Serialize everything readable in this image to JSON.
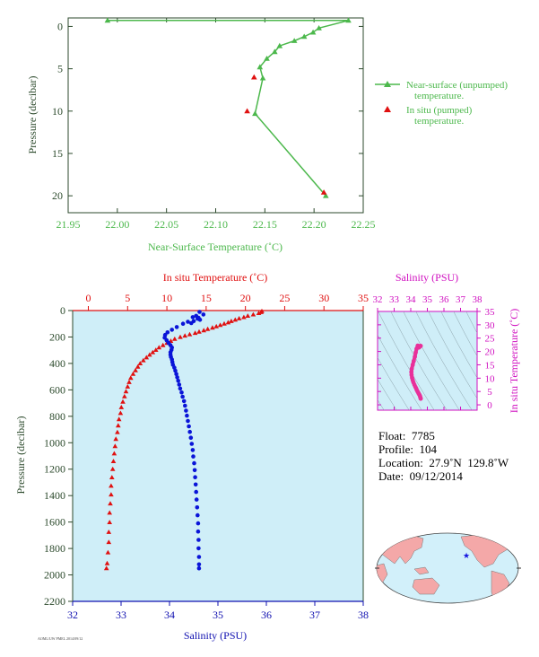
{
  "colors": {
    "near_surface": "#4cb84c",
    "temperature": "#e01010",
    "salinity": "#0a14d8",
    "salinity_axis": "#1010b0",
    "ts_magenta": "#d010c0",
    "ts_trace": "#e8309a",
    "plot_bg": "#cfeef8",
    "axis_dark": "#2c4a2c"
  },
  "chart_data": [
    {
      "id": "near_surface",
      "type": "scatter",
      "xlabel": "Near-Surface Temperature (˚C)",
      "ylabel": "Pressure (decibar)",
      "xlim": [
        21.95,
        22.25
      ],
      "ylim": [
        22,
        -1
      ],
      "xticks": [
        "21.95",
        "22.00",
        "22.05",
        "22.10",
        "22.15",
        "22.20",
        "22.25"
      ],
      "yticks": [
        "0",
        "5",
        "10",
        "15",
        "20"
      ],
      "legend_placement": "right",
      "series": [
        {
          "name": "Near-surface (unpumped) temperature.",
          "line1": "Near-surface (unpumped)",
          "line2": "temperature.",
          "marker": "triangle",
          "points": [
            [
              21.99,
              -0.7
            ],
            [
              22.235,
              -0.7
            ],
            [
              22.205,
              0.2
            ],
            [
              22.199,
              0.7
            ],
            [
              22.19,
              1.2
            ],
            [
              22.18,
              1.7
            ],
            [
              22.165,
              2.3
            ],
            [
              22.16,
              3.0
            ],
            [
              22.152,
              3.8
            ],
            [
              22.145,
              4.8
            ],
            [
              22.148,
              6.1
            ],
            [
              22.14,
              10.3
            ],
            [
              22.212,
              20.0
            ]
          ],
          "points_label": "[pressure in decibar, temperature]"
        },
        {
          "name": "In situ (pumped) temperature.",
          "line1": "In situ (pumped)",
          "line2": "temperature.",
          "marker": "triangle",
          "points": [
            [
              22.139,
              6.0
            ],
            [
              22.132,
              10.0
            ],
            [
              22.21,
              19.6
            ]
          ]
        }
      ]
    },
    {
      "id": "profile",
      "type": "scatter",
      "top_xlabel": "In situ Temperature (˚C)",
      "bottom_xlabel": "Salinity (PSU)",
      "ylabel": "Pressure (decibar)",
      "temp_xlim": [
        -2,
        35
      ],
      "sal_xlim": [
        32,
        38
      ],
      "ylim": [
        2200,
        0
      ],
      "temp_xticks": [
        "0",
        "5",
        "10",
        "15",
        "20",
        "25",
        "30",
        "35"
      ],
      "sal_xticks": [
        "32",
        "33",
        "34",
        "35",
        "36",
        "37",
        "38"
      ],
      "yticks": [
        "0",
        "200",
        "400",
        "600",
        "800",
        "1000",
        "1200",
        "1400",
        "1600",
        "1800",
        "2000",
        "2200"
      ],
      "series": [
        {
          "name": "In situ Temperature",
          "marker": "triangle",
          "points": [
            [
              22.1,
              5
            ],
            [
              22.0,
              12
            ],
            [
              21.7,
              20
            ],
            [
              21.0,
              30
            ],
            [
              20.3,
              40
            ],
            [
              19.8,
              50
            ],
            [
              19.2,
              60
            ],
            [
              18.7,
              70
            ],
            [
              18.2,
              80
            ],
            [
              17.8,
              90
            ],
            [
              17.3,
              100
            ],
            [
              16.8,
              110
            ],
            [
              16.3,
              120
            ],
            [
              15.8,
              130
            ],
            [
              15.2,
              140
            ],
            [
              14.7,
              150
            ],
            [
              14.1,
              160
            ],
            [
              13.6,
              170
            ],
            [
              12.9,
              180
            ],
            [
              12.3,
              190
            ],
            [
              11.7,
              200
            ],
            [
              11.0,
              215
            ],
            [
              10.5,
              230
            ],
            [
              10.0,
              245
            ],
            [
              9.5,
              262
            ],
            [
              9.0,
              280
            ],
            [
              8.6,
              298
            ],
            [
              8.2,
              316
            ],
            [
              7.8,
              335
            ],
            [
              7.4,
              355
            ],
            [
              7.0,
              377
            ],
            [
              6.6,
              400
            ],
            [
              6.3,
              425
            ],
            [
              6.0,
              452
            ],
            [
              5.7,
              480
            ],
            [
              5.4,
              510
            ],
            [
              5.2,
              542
            ],
            [
              5.0,
              576
            ],
            [
              4.8,
              612
            ],
            [
              4.6,
              650
            ],
            [
              4.4,
              690
            ],
            [
              4.2,
              732
            ],
            [
              4.1,
              776
            ],
            [
              3.9,
              822
            ],
            [
              3.8,
              870
            ],
            [
              3.7,
              920
            ],
            [
              3.5,
              972
            ],
            [
              3.4,
              1026
            ],
            [
              3.3,
              1082
            ],
            [
              3.2,
              1140
            ],
            [
              3.1,
              1200
            ],
            [
              3.0,
              1262
            ],
            [
              2.9,
              1326
            ],
            [
              2.9,
              1392
            ],
            [
              2.8,
              1460
            ],
            [
              2.7,
              1530
            ],
            [
              2.7,
              1602
            ],
            [
              2.6,
              1676
            ],
            [
              2.6,
              1752
            ],
            [
              2.5,
              1830
            ],
            [
              2.4,
              1912
            ],
            [
              2.3,
              1950
            ]
          ]
        },
        {
          "name": "Salinity",
          "marker": "circle",
          "points": [
            [
              34.7,
              30
            ],
            [
              34.62,
              10
            ],
            [
              34.55,
              40
            ],
            [
              34.6,
              55
            ],
            [
              34.63,
              70
            ],
            [
              34.58,
              62
            ],
            [
              34.48,
              50
            ],
            [
              34.5,
              80
            ],
            [
              34.45,
              95
            ],
            [
              34.38,
              85
            ],
            [
              34.28,
              100
            ],
            [
              34.15,
              125
            ],
            [
              34.05,
              145
            ],
            [
              33.96,
              165
            ],
            [
              33.91,
              185
            ],
            [
              33.9,
              205
            ],
            [
              33.94,
              225
            ],
            [
              33.98,
              245
            ],
            [
              34.02,
              262
            ],
            [
              34.05,
              280
            ],
            [
              34.04,
              298
            ],
            [
              34.02,
              316
            ],
            [
              34.02,
              334
            ],
            [
              34.03,
              352
            ],
            [
              34.05,
              370
            ],
            [
              34.06,
              390
            ],
            [
              34.07,
              410
            ],
            [
              34.1,
              432
            ],
            [
              34.12,
              455
            ],
            [
              34.14,
              480
            ],
            [
              34.16,
              505
            ],
            [
              34.18,
              532
            ],
            [
              34.2,
              560
            ],
            [
              34.22,
              590
            ],
            [
              34.25,
              620
            ],
            [
              34.27,
              652
            ],
            [
              34.3,
              685
            ],
            [
              34.32,
              720
            ],
            [
              34.34,
              757
            ],
            [
              34.36,
              795
            ],
            [
              34.38,
              835
            ],
            [
              34.4,
              876
            ],
            [
              34.42,
              918
            ],
            [
              34.44,
              962
            ],
            [
              34.46,
              1008
            ],
            [
              34.48,
              1055
            ],
            [
              34.49,
              1104
            ],
            [
              34.51,
              1155
            ],
            [
              34.52,
              1207
            ],
            [
              34.53,
              1261
            ],
            [
              34.54,
              1316
            ],
            [
              34.55,
              1372
            ],
            [
              34.56,
              1430
            ],
            [
              34.57,
              1489
            ],
            [
              34.58,
              1549
            ],
            [
              34.59,
              1610
            ],
            [
              34.59,
              1672
            ],
            [
              34.6,
              1735
            ],
            [
              34.6,
              1799
            ],
            [
              34.61,
              1864
            ],
            [
              34.61,
              1920
            ],
            [
              34.61,
              1950
            ]
          ]
        }
      ]
    },
    {
      "id": "ts_diagram",
      "type": "scatter",
      "top_xlabel": "Salinity (PSU)",
      "right_ylabel": "In situ Temperature (˚C)",
      "xlim": [
        32,
        38
      ],
      "ylim": [
        -2,
        35
      ],
      "xticks": [
        "32",
        "33",
        "34",
        "35",
        "36",
        "37",
        "38"
      ],
      "yticks": [
        "0",
        "5",
        "10",
        "15",
        "20",
        "25",
        "30",
        "35"
      ],
      "series": [
        {
          "name": "T-S",
          "points": [
            [
              34.6,
              2.3
            ],
            [
              34.59,
              2.6
            ],
            [
              34.57,
              3.0
            ],
            [
              34.55,
              3.4
            ],
            [
              34.52,
              3.8
            ],
            [
              34.48,
              4.2
            ],
            [
              34.45,
              4.6
            ],
            [
              34.41,
              5.0
            ],
            [
              34.37,
              5.5
            ],
            [
              34.33,
              6.1
            ],
            [
              34.28,
              6.7
            ],
            [
              34.22,
              7.5
            ],
            [
              34.16,
              8.4
            ],
            [
              34.12,
              9.2
            ],
            [
              34.08,
              10.1
            ],
            [
              34.05,
              11.2
            ],
            [
              34.04,
              12.3
            ],
            [
              34.06,
              13.5
            ],
            [
              34.12,
              15.0
            ],
            [
              34.18,
              16.4
            ],
            [
              34.25,
              18.0
            ],
            [
              34.3,
              19.6
            ],
            [
              34.35,
              21.0
            ],
            [
              34.42,
              22.2
            ],
            [
              34.5,
              21.5
            ],
            [
              34.55,
              22.0
            ],
            [
              34.6,
              22.1
            ]
          ]
        }
      ]
    }
  ],
  "float_info": {
    "float": "Float:  7785",
    "profile": "Profile:  104",
    "location": "Location:  27.9˚N  129.8˚W",
    "date": "Date:  09/12/2014"
  },
  "footer_code": "AOML/UW PMEL 2014/09/12"
}
